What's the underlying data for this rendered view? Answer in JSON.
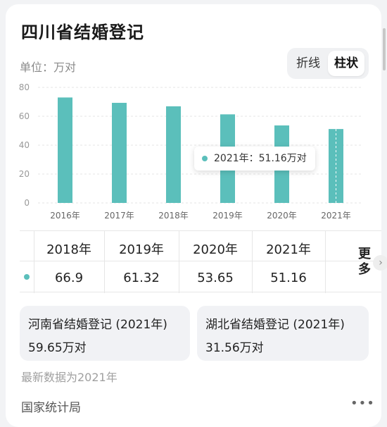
{
  "title": "四川省结婚登记",
  "unit_label": "单位：万对",
  "view_toggle": {
    "line_label": "折线",
    "bar_label": "柱状",
    "selected": "bar"
  },
  "colors": {
    "series": "#5bbfbb",
    "grid": "#e6e6e6"
  },
  "chart_data": {
    "type": "bar",
    "categories": [
      "2016年",
      "2017年",
      "2018年",
      "2019年",
      "2020年",
      "2021年"
    ],
    "values": [
      73.0,
      69.3,
      66.9,
      61.32,
      53.65,
      51.16
    ],
    "ylim": [
      0,
      80
    ],
    "yticks": [
      "0",
      "20",
      "40",
      "60",
      "80"
    ],
    "grid": true
  },
  "tooltip": {
    "label": "2021年：51.16万对"
  },
  "table": {
    "headers": [
      "2018年",
      "2019年",
      "2020年",
      "2021年"
    ],
    "values": [
      "66.9",
      "61.32",
      "53.65",
      "51.16"
    ],
    "more_label": "更多",
    "more_icon": "chevron-right-icon"
  },
  "comparisons": [
    {
      "name": "河南省结婚登记 (2021年)",
      "value": "59.65万对"
    },
    {
      "name": "湖北省结婚登记 (2021年)",
      "value": "31.56万对"
    }
  ],
  "latest_note": "最新数据为2021年",
  "source": "国家统计局",
  "menu_icon": "more-horizontal-icon"
}
